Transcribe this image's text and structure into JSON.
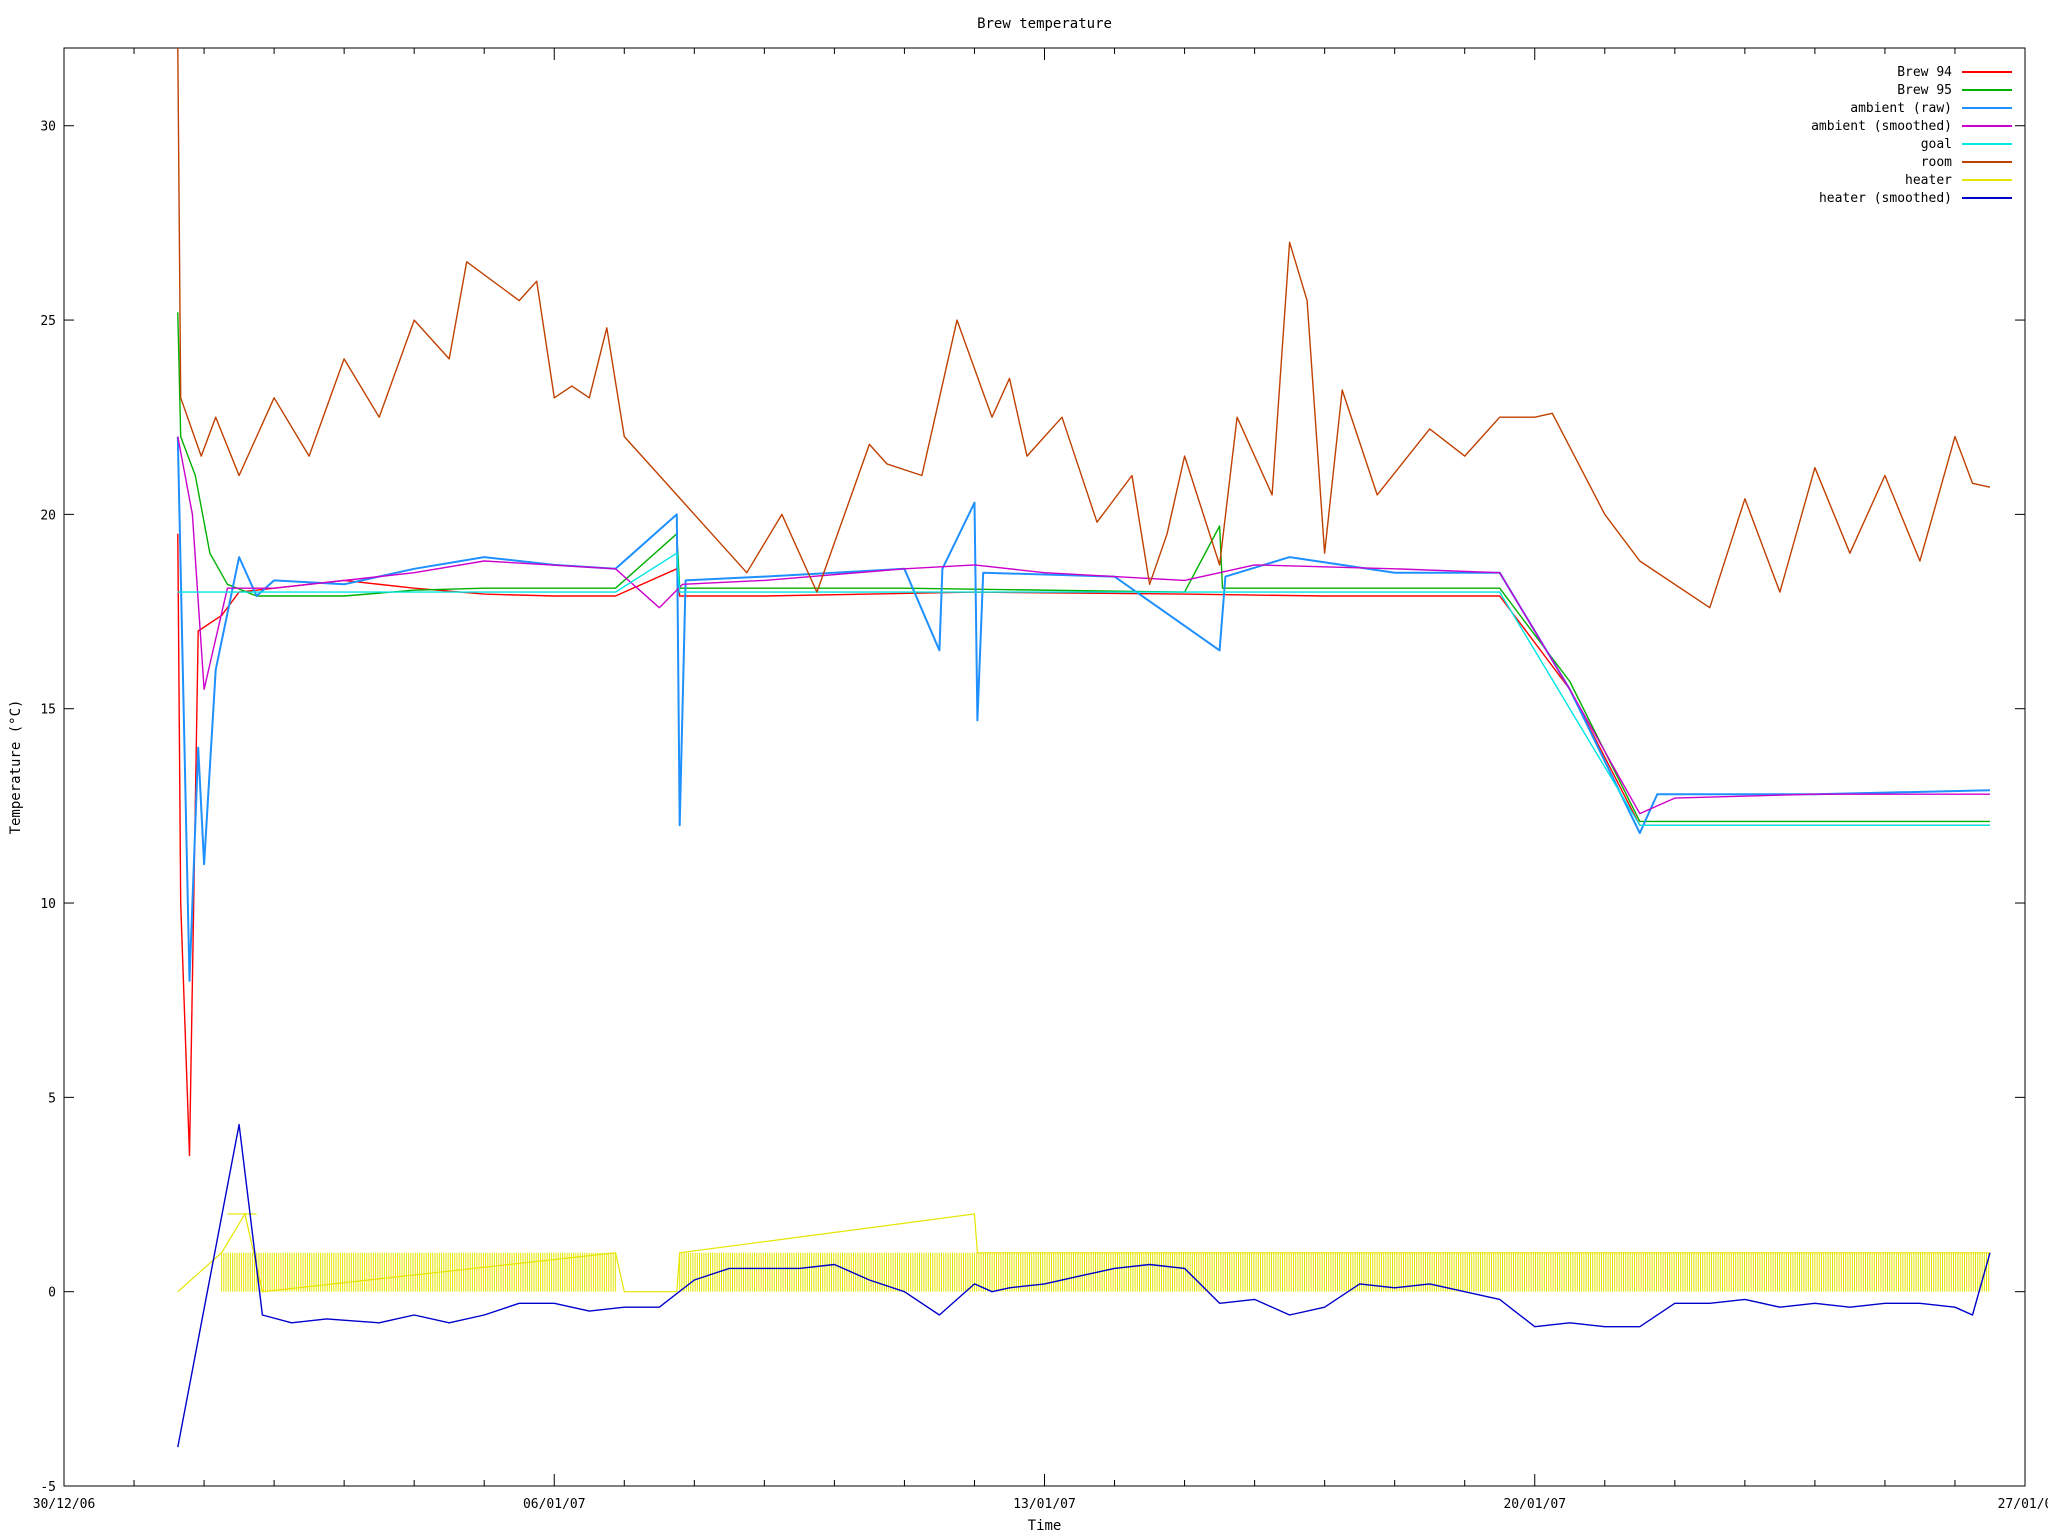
{
  "chart_data": {
    "type": "line",
    "title": "Brew temperature",
    "xlabel": "Time",
    "ylabel": "Temperature (°C)",
    "ylim": [
      -5,
      32
    ],
    "xlim": [
      "30/12/06",
      "27/01/07"
    ],
    "x_tick_labels": [
      "30/12/06",
      "06/01/07",
      "13/01/07",
      "20/01/07",
      "27/01/0"
    ],
    "y_ticks": [
      -5,
      0,
      5,
      10,
      15,
      20,
      25,
      30
    ],
    "grid": false,
    "legend_position": "top-right",
    "series": [
      {
        "name": "Brew 94",
        "color": "#ff0000",
        "points": [
          [
            "31/12/06 15:00",
            19.5
          ],
          [
            "31/12/06 16:00",
            10
          ],
          [
            "31/12/06 19:00",
            3.5
          ],
          [
            "31/12/06 22:00",
            17
          ],
          [
            "01/01/07 06:00",
            17.4
          ],
          [
            "01/01/07 12:00",
            18
          ],
          [
            "02/01/07 00:00",
            18.1
          ],
          [
            "03/01/07 00:00",
            18.3
          ],
          [
            "04/01/07 00:00",
            18.1
          ],
          [
            "05/01/07 00:00",
            17.95
          ],
          [
            "06/01/07 00:00",
            17.9
          ],
          [
            "06/01/07 21:00",
            17.9
          ],
          [
            "07/01/07 18:00",
            18.6
          ],
          [
            "07/01/07 19:00",
            17.9
          ],
          [
            "09/01/07 00:00",
            17.9
          ],
          [
            "12/01/07 00:00",
            18.0
          ],
          [
            "15/01/07 00:00",
            17.95
          ],
          [
            "17/01/07 00:00",
            17.9
          ],
          [
            "19/01/07 12:00",
            17.9
          ],
          [
            "20/01/07 12:00",
            15.5
          ],
          [
            "21/01/07 12:00",
            12.0
          ],
          [
            "24/01/07 00:00",
            12.0
          ],
          [
            "26/01/07 12:00",
            12.0
          ]
        ]
      },
      {
        "name": "Brew 95",
        "color": "#00b000",
        "points": [
          [
            "31/12/06 15:00",
            25.2
          ],
          [
            "31/12/06 16:00",
            22
          ],
          [
            "31/12/06 21:00",
            21
          ],
          [
            "01/01/07 02:00",
            19
          ],
          [
            "01/01/07 08:00",
            18.2
          ],
          [
            "01/01/07 18:00",
            17.9
          ],
          [
            "03/01/07 00:00",
            17.9
          ],
          [
            "04/01/07 00:00",
            18.05
          ],
          [
            "05/01/07 00:00",
            18.1
          ],
          [
            "06/01/07 21:00",
            18.1
          ],
          [
            "07/01/07 18:00",
            19.5
          ],
          [
            "07/01/07 19:00",
            18.1
          ],
          [
            "11/01/07 00:00",
            18.1
          ],
          [
            "15/01/07 00:00",
            18.0
          ],
          [
            "15/01/07 12:00",
            19.7
          ],
          [
            "15/01/07 13:00",
            18.1
          ],
          [
            "19/01/07 12:00",
            18.1
          ],
          [
            "20/01/07 12:00",
            15.7
          ],
          [
            "21/01/07 12:00",
            12.1
          ],
          [
            "24/01/07 00:00",
            12.1
          ],
          [
            "26/01/07 12:00",
            12.1
          ]
        ]
      },
      {
        "name": "ambient (raw)",
        "color": "#1e90ff",
        "points": [
          [
            "31/12/06 15:00",
            22
          ],
          [
            "31/12/06 19:00",
            8
          ],
          [
            "31/12/06 22:00",
            14
          ],
          [
            "01/01/07 00:00",
            11
          ],
          [
            "01/01/07 04:00",
            16
          ],
          [
            "01/01/07 12:00",
            18.9
          ],
          [
            "01/01/07 18:00",
            17.9
          ],
          [
            "02/01/07 00:00",
            18.3
          ],
          [
            "03/01/07 00:00",
            18.2
          ],
          [
            "04/01/07 00:00",
            18.6
          ],
          [
            "05/01/07 00:00",
            18.9
          ],
          [
            "06/01/07 00:00",
            18.7
          ],
          [
            "06/01/07 21:00",
            18.6
          ],
          [
            "07/01/07 18:00",
            20.0
          ],
          [
            "07/01/07 19:00",
            12.0
          ],
          [
            "07/01/07 21:00",
            18.3
          ],
          [
            "09/01/07 00:00",
            18.4
          ],
          [
            "11/01/07 00:00",
            18.6
          ],
          [
            "11/01/07 12:00",
            16.5
          ],
          [
            "11/01/07 13:00",
            18.6
          ],
          [
            "12/01/07 00:00",
            20.3
          ],
          [
            "12/01/07 01:00",
            14.7
          ],
          [
            "12/01/07 03:00",
            18.5
          ],
          [
            "14/01/07 00:00",
            18.4
          ],
          [
            "15/01/07 12:00",
            16.5
          ],
          [
            "15/01/07 14:00",
            18.4
          ],
          [
            "16/01/07 12:00",
            18.9
          ],
          [
            "18/01/07 00:00",
            18.5
          ],
          [
            "19/01/07 12:00",
            18.5
          ],
          [
            "20/01/07 12:00",
            15.5
          ],
          [
            "21/01/07 12:00",
            11.8
          ],
          [
            "21/01/07 18:00",
            12.8
          ],
          [
            "24/01/07 00:00",
            12.8
          ],
          [
            "26/01/07 12:00",
            12.9
          ]
        ]
      },
      {
        "name": "ambient (smoothed)",
        "color": "#cc00cc",
        "points": [
          [
            "31/12/06 15:00",
            22
          ],
          [
            "31/12/06 20:00",
            20
          ],
          [
            "01/01/07 00:00",
            15.5
          ],
          [
            "01/01/07 08:00",
            18.1
          ],
          [
            "02/01/07 00:00",
            18.1
          ],
          [
            "04/01/07 00:00",
            18.5
          ],
          [
            "05/01/07 00:00",
            18.8
          ],
          [
            "06/01/07 21:00",
            18.6
          ],
          [
            "07/01/07 12:00",
            17.6
          ],
          [
            "07/01/07 20:00",
            18.2
          ],
          [
            "09/01/07 00:00",
            18.3
          ],
          [
            "11/01/07 00:00",
            18.6
          ],
          [
            "12/01/07 00:00",
            18.7
          ],
          [
            "13/01/07 00:00",
            18.5
          ],
          [
            "15/01/07 00:00",
            18.3
          ],
          [
            "16/01/07 00:00",
            18.7
          ],
          [
            "18/01/07 00:00",
            18.6
          ],
          [
            "19/01/07 12:00",
            18.5
          ],
          [
            "20/01/07 12:00",
            15.5
          ],
          [
            "21/01/07 12:00",
            12.3
          ],
          [
            "22/01/07 00:00",
            12.7
          ],
          [
            "24/01/07 00:00",
            12.8
          ],
          [
            "26/01/07 12:00",
            12.8
          ]
        ]
      },
      {
        "name": "goal",
        "color": "#00e5e5",
        "points": [
          [
            "31/12/06 15:00",
            18.0
          ],
          [
            "06/01/07 21:00",
            18.0
          ],
          [
            "07/01/07 18:00",
            19.0
          ],
          [
            "07/01/07 19:00",
            18.0
          ],
          [
            "19/01/07 12:00",
            18.0
          ],
          [
            "21/01/07 12:00",
            12.0
          ],
          [
            "26/01/07 12:00",
            12.0
          ]
        ]
      },
      {
        "name": "room",
        "color": "#c04000",
        "points": [
          [
            "31/12/06 15:00",
            32
          ],
          [
            "31/12/06 16:00",
            23
          ],
          [
            "31/12/06 23:00",
            21.5
          ],
          [
            "01/01/07 04:00",
            22.5
          ],
          [
            "01/01/07 12:00",
            21.0
          ],
          [
            "02/01/07 00:00",
            23.0
          ],
          [
            "02/01/07 12:00",
            21.5
          ],
          [
            "03/01/07 00:00",
            24.0
          ],
          [
            "03/01/07 12:00",
            22.5
          ],
          [
            "04/01/07 00:00",
            25.0
          ],
          [
            "04/01/07 12:00",
            24.0
          ],
          [
            "04/01/07 18:00",
            26.5
          ],
          [
            "05/01/07 12:00",
            25.5
          ],
          [
            "05/01/07 18:00",
            26.0
          ],
          [
            "06/01/07 00:00",
            23.0
          ],
          [
            "06/01/07 06:00",
            23.3
          ],
          [
            "06/01/07 12:00",
            23.0
          ],
          [
            "06/01/07 18:00",
            24.8
          ],
          [
            "07/01/07 00:00",
            22.0
          ],
          [
            "07/01/07 18:00",
            20.5
          ],
          [
            "08/01/07 06:00",
            19.5
          ],
          [
            "08/01/07 18:00",
            18.5
          ],
          [
            "09/01/07 06:00",
            20.0
          ],
          [
            "09/01/07 18:00",
            18.0
          ],
          [
            "10/01/07 12:00",
            21.8
          ],
          [
            "10/01/07 18:00",
            21.3
          ],
          [
            "11/01/07 06:00",
            21.0
          ],
          [
            "11/01/07 18:00",
            25.0
          ],
          [
            "12/01/07 06:00",
            22.5
          ],
          [
            "12/01/07 12:00",
            23.5
          ],
          [
            "12/01/07 18:00",
            21.5
          ],
          [
            "13/01/07 06:00",
            22.5
          ],
          [
            "13/01/07 18:00",
            19.8
          ],
          [
            "14/01/07 06:00",
            21.0
          ],
          [
            "14/01/07 12:00",
            18.2
          ],
          [
            "14/01/07 18:00",
            19.5
          ],
          [
            "15/01/07 00:00",
            21.5
          ],
          [
            "15/01/07 12:00",
            18.7
          ],
          [
            "15/01/07 18:00",
            22.5
          ],
          [
            "16/01/07 06:00",
            20.5
          ],
          [
            "16/01/07 12:00",
            27.0
          ],
          [
            "16/01/07 18:00",
            25.5
          ],
          [
            "17/01/07 00:00",
            19.0
          ],
          [
            "17/01/07 06:00",
            23.2
          ],
          [
            "17/01/07 18:00",
            20.5
          ],
          [
            "18/01/07 12:00",
            22.2
          ],
          [
            "19/01/07 00:00",
            21.5
          ],
          [
            "19/01/07 12:00",
            22.5
          ],
          [
            "20/01/07 00:00",
            22.5
          ],
          [
            "20/01/07 06:00",
            22.6
          ],
          [
            "21/01/07 00:00",
            20.0
          ],
          [
            "21/01/07 12:00",
            18.8
          ],
          [
            "22/01/07 12:00",
            17.6
          ],
          [
            "23/01/07 00:00",
            20.4
          ],
          [
            "23/01/07 12:00",
            18.0
          ],
          [
            "24/01/07 00:00",
            21.2
          ],
          [
            "24/01/07 12:00",
            19.0
          ],
          [
            "25/01/07 00:00",
            21.0
          ],
          [
            "25/01/07 12:00",
            18.8
          ],
          [
            "26/01/07 00:00",
            22.0
          ],
          [
            "26/01/07 06:00",
            20.8
          ],
          [
            "26/01/07 12:00",
            20.7
          ]
        ]
      },
      {
        "name": "heater",
        "color": "#e5e500",
        "note_on_values": "heater output toggles between 0 and 1; a step to 2 near 01/01/07 and a spike to 2 near 12/01/07",
        "points": [
          [
            "31/12/06 15:00",
            0
          ],
          [
            "01/01/07 06:00",
            1
          ],
          [
            "01/01/07 14:00",
            2
          ],
          [
            "01/01/07 20:00",
            0
          ],
          [
            "06/01/07 21:00",
            1
          ],
          [
            "07/01/07 00:00",
            0
          ],
          [
            "07/01/07 18:00",
            0
          ],
          [
            "07/01/07 19:00",
            1
          ],
          [
            "12/01/07 00:00",
            2
          ],
          [
            "12/01/07 01:00",
            1
          ],
          [
            "26/01/07 12:00",
            1
          ]
        ]
      },
      {
        "name": "heater (smoothed)",
        "color": "#0000cc",
        "points": [
          [
            "31/12/06 15:00",
            -4.0
          ],
          [
            "01/01/07 12:00",
            4.3
          ],
          [
            "01/01/07 20:00",
            -0.6
          ],
          [
            "02/01/07 06:00",
            -0.8
          ],
          [
            "02/01/07 18:00",
            -0.7
          ],
          [
            "03/01/07 12:00",
            -0.8
          ],
          [
            "04/01/07 00:00",
            -0.6
          ],
          [
            "04/01/07 12:00",
            -0.8
          ],
          [
            "05/01/07 00:00",
            -0.6
          ],
          [
            "05/01/07 12:00",
            -0.3
          ],
          [
            "06/01/07 00:00",
            -0.3
          ],
          [
            "06/01/07 12:00",
            -0.5
          ],
          [
            "07/01/07 00:00",
            -0.4
          ],
          [
            "07/01/07 12:00",
            -0.4
          ],
          [
            "08/01/07 00:00",
            0.3
          ],
          [
            "08/01/07 12:00",
            0.6
          ],
          [
            "09/01/07 00:00",
            0.6
          ],
          [
            "09/01/07 12:00",
            0.6
          ],
          [
            "10/01/07 00:00",
            0.7
          ],
          [
            "10/01/07 12:00",
            0.3
          ],
          [
            "11/01/07 00:00",
            0.0
          ],
          [
            "11/01/07 12:00",
            -0.6
          ],
          [
            "12/01/07 00:00",
            0.2
          ],
          [
            "12/01/07 06:00",
            0.0
          ],
          [
            "12/01/07 12:00",
            0.1
          ],
          [
            "13/01/07 00:00",
            0.2
          ],
          [
            "13/01/07 12:00",
            0.4
          ],
          [
            "14/01/07 00:00",
            0.6
          ],
          [
            "14/01/07 12:00",
            0.7
          ],
          [
            "15/01/07 00:00",
            0.6
          ],
          [
            "15/01/07 12:00",
            -0.3
          ],
          [
            "16/01/07 00:00",
            -0.2
          ],
          [
            "16/01/07 12:00",
            -0.6
          ],
          [
            "17/01/07 00:00",
            -0.4
          ],
          [
            "17/01/07 12:00",
            0.2
          ],
          [
            "18/01/07 00:00",
            0.1
          ],
          [
            "18/01/07 12:00",
            0.2
          ],
          [
            "19/01/07 00:00",
            0.0
          ],
          [
            "19/01/07 12:00",
            -0.2
          ],
          [
            "20/01/07 00:00",
            -0.9
          ],
          [
            "20/01/07 12:00",
            -0.8
          ],
          [
            "21/01/07 00:00",
            -0.9
          ],
          [
            "21/01/07 12:00",
            -0.9
          ],
          [
            "22/01/07 00:00",
            -0.3
          ],
          [
            "22/01/07 12:00",
            -0.3
          ],
          [
            "23/01/07 00:00",
            -0.2
          ],
          [
            "23/01/07 12:00",
            -0.4
          ],
          [
            "24/01/07 00:00",
            -0.3
          ],
          [
            "24/01/07 12:00",
            -0.4
          ],
          [
            "25/01/07 00:00",
            -0.3
          ],
          [
            "25/01/07 12:00",
            -0.3
          ],
          [
            "26/01/07 00:00",
            -0.4
          ],
          [
            "26/01/07 06:00",
            -0.6
          ],
          [
            "26/01/07 12:00",
            1.0
          ]
        ]
      }
    ]
  }
}
